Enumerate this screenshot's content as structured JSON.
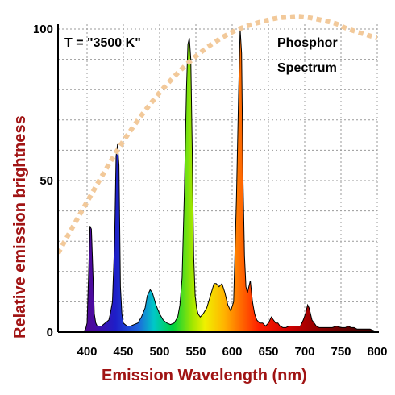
{
  "chart_data": {
    "type": "area",
    "title": "",
    "xlabel": "Emission Wavelength (nm)",
    "ylabel": "Relative emission brightness",
    "xlim": [
      360,
      800
    ],
    "ylim": [
      0,
      100
    ],
    "x_ticks": [
      400,
      450,
      500,
      550,
      600,
      650,
      700,
      750,
      800
    ],
    "y_ticks": [
      0,
      50,
      100
    ],
    "grid": true,
    "annotations": {
      "temperature": "T = \"3500 K\"",
      "label_line1": "Phosphor",
      "label_line2": "Spectrum"
    },
    "colors": {
      "axis_title": "#a01414",
      "blackbody_curve": "#f2c99a",
      "grid": "#9a9a9a"
    },
    "series": [
      {
        "style": "spectrum-fill",
        "x": [
          360,
          395,
          398,
          400,
          402,
          404,
          406,
          408,
          410,
          412,
          414,
          420,
          425,
          430,
          432,
          435,
          438,
          440,
          442,
          444,
          446,
          448,
          450,
          455,
          460,
          465,
          470,
          475,
          480,
          483,
          487,
          490,
          495,
          500,
          505,
          510,
          515,
          520,
          525,
          528,
          531,
          534,
          537,
          539,
          541,
          543,
          545,
          547,
          549,
          551,
          553,
          556,
          560,
          565,
          570,
          575,
          578,
          582,
          586,
          590,
          594,
          598,
          602,
          606,
          609,
          611,
          613,
          615,
          617,
          619,
          621,
          623,
          625,
          628,
          631,
          634,
          638,
          642,
          646,
          650,
          654,
          657,
          660,
          663,
          666,
          670,
          674,
          678,
          682,
          686,
          690,
          694,
          698,
          701,
          704,
          706,
          708,
          710,
          713,
          716,
          720,
          724,
          728,
          732,
          738,
          744,
          750,
          756,
          760,
          764,
          768,
          772,
          780,
          790,
          800
        ],
        "y": [
          0,
          0,
          1,
          3,
          18,
          35,
          34,
          20,
          6,
          3,
          2,
          2,
          3,
          4,
          6,
          10,
          30,
          58,
          62,
          55,
          15,
          6,
          3,
          2,
          2,
          2.5,
          3,
          5,
          8,
          12,
          14,
          13,
          9,
          6,
          4,
          3,
          2.5,
          3,
          5,
          9,
          18,
          45,
          80,
          95,
          97,
          90,
          60,
          25,
          12,
          8,
          6,
          5,
          6,
          8,
          12,
          16,
          16,
          15,
          16,
          13,
          9,
          7,
          10,
          45,
          80,
          100,
          92,
          50,
          25,
          15,
          13,
          15,
          17,
          10,
          6,
          4,
          3,
          3,
          2,
          3,
          5,
          4,
          3,
          3,
          2,
          1.5,
          1.5,
          2,
          2,
          2,
          2,
          2,
          4,
          6,
          9,
          8,
          6,
          4,
          3,
          2,
          1.5,
          1.5,
          1.5,
          1.5,
          1.5,
          2,
          1.5,
          1.5,
          2,
          1.5,
          1.5,
          1,
          1,
          1,
          0
        ]
      },
      {
        "style": "blackbody-dotted",
        "x": [
          360,
          400,
          450,
          500,
          550,
          600,
          650,
          680,
          700,
          740,
          760,
          800
        ],
        "y": [
          26,
          43,
          63,
          79,
          91,
          99,
          103,
          104,
          104,
          102,
          100,
          97
        ]
      }
    ]
  }
}
